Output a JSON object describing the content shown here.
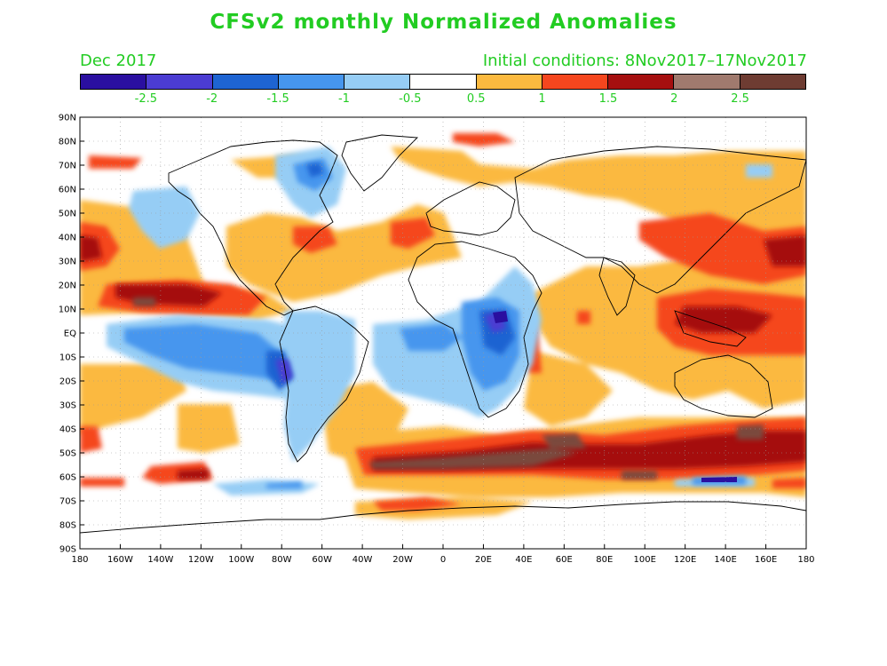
{
  "title": "CFSv2 monthly Normalized Anomalies",
  "month_label": "Dec 2017",
  "initial_conditions": "Initial conditions: 8Nov2017–17Nov2017",
  "colorbar": {
    "colors": [
      "#2a0fa0",
      "#4b3cd2",
      "#1e64d2",
      "#4696ee",
      "#96cdf5",
      "#ffffff",
      "#fbb93f",
      "#f5461e",
      "#a50f0f",
      "#a07a6e",
      "#6e3c32"
    ],
    "labels": [
      "-2.5",
      "-2",
      "-1.5",
      "-1",
      "-0.5",
      "0.5",
      "1",
      "1.5",
      "2",
      "2.5"
    ]
  },
  "map": {
    "lat_labels": [
      "90N",
      "80N",
      "70N",
      "60N",
      "50N",
      "40N",
      "30N",
      "20N",
      "10N",
      "EQ",
      "10S",
      "20S",
      "30S",
      "40S",
      "50S",
      "60S",
      "70S",
      "80S",
      "90S"
    ],
    "lon_labels": [
      "180",
      "160W",
      "140W",
      "120W",
      "100W",
      "80W",
      "60W",
      "40W",
      "20W",
      "0",
      "20E",
      "40E",
      "60E",
      "80E",
      "100E",
      "120E",
      "140E",
      "160E",
      "180"
    ]
  }
}
